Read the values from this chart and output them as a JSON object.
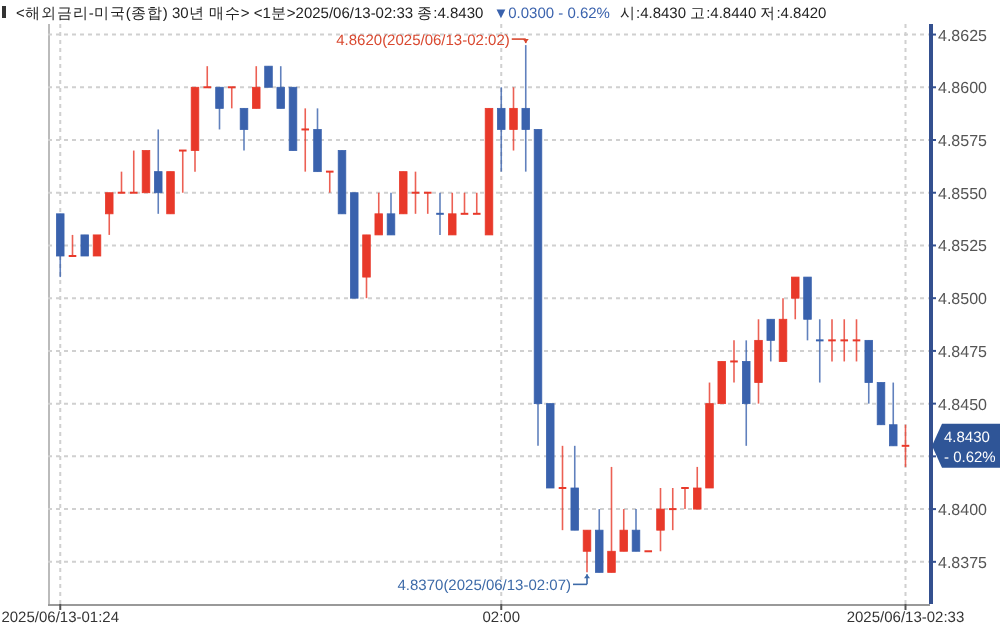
{
  "chart_data": {
    "type": "candlestick",
    "title": "<해외금리-미국(종합) 30년 매수> <1분>2025/06/13-02:33 종:4.8430",
    "subtitle": "▼0.0300  - 0.62%",
    "annotations": [
      "시:4.8430 고:4.8440 저:4.8420",
      {
        "text": "4.8620(2025/06/13-02:02)",
        "x": "2025-06-13T02:02",
        "y": 4.862
      },
      {
        "text": "4.8370(2025/06/13-02:07)",
        "x": "2025-06-13T02:07",
        "y": 4.837
      },
      "4.8430",
      "- 0.62%"
    ],
    "x": [
      "2025-06-13T01:24",
      "2025-06-13T01:25",
      "2025-06-13T01:26",
      "2025-06-13T01:27",
      "2025-06-13T01:28",
      "2025-06-13T01:29",
      "2025-06-13T01:30",
      "2025-06-13T01:31",
      "2025-06-13T01:32",
      "2025-06-13T01:33",
      "2025-06-13T01:34",
      "2025-06-13T01:35",
      "2025-06-13T01:36",
      "2025-06-13T01:37",
      "2025-06-13T01:38",
      "2025-06-13T01:39",
      "2025-06-13T01:40",
      "2025-06-13T01:41",
      "2025-06-13T01:42",
      "2025-06-13T01:43",
      "2025-06-13T01:44",
      "2025-06-13T01:45",
      "2025-06-13T01:46",
      "2025-06-13T01:47",
      "2025-06-13T01:48",
      "2025-06-13T01:49",
      "2025-06-13T01:50",
      "2025-06-13T01:51",
      "2025-06-13T01:52",
      "2025-06-13T01:53",
      "2025-06-13T01:54",
      "2025-06-13T01:55",
      "2025-06-13T01:56",
      "2025-06-13T01:57",
      "2025-06-13T01:58",
      "2025-06-13T01:59",
      "2025-06-13T02:00",
      "2025-06-13T02:01",
      "2025-06-13T02:02",
      "2025-06-13T02:03",
      "2025-06-13T02:04",
      "2025-06-13T02:05",
      "2025-06-13T02:06",
      "2025-06-13T02:07",
      "2025-06-13T02:08",
      "2025-06-13T02:09",
      "2025-06-13T02:10",
      "2025-06-13T02:11",
      "2025-06-13T02:12",
      "2025-06-13T02:13",
      "2025-06-13T02:14",
      "2025-06-13T02:15",
      "2025-06-13T02:16",
      "2025-06-13T02:17",
      "2025-06-13T02:18",
      "2025-06-13T02:19",
      "2025-06-13T02:20",
      "2025-06-13T02:21",
      "2025-06-13T02:22",
      "2025-06-13T02:23",
      "2025-06-13T02:24",
      "2025-06-13T02:25",
      "2025-06-13T02:26",
      "2025-06-13T02:27",
      "2025-06-13T02:28",
      "2025-06-13T02:29",
      "2025-06-13T02:30",
      "2025-06-13T02:31",
      "2025-06-13T02:32",
      "2025-06-13T02:33"
    ],
    "ohlc": [
      [
        4.854,
        4.854,
        4.851,
        4.852
      ],
      [
        4.852,
        4.853,
        4.852,
        4.852
      ],
      [
        4.853,
        4.853,
        4.852,
        4.852
      ],
      [
        4.852,
        4.853,
        4.852,
        4.853
      ],
      [
        4.854,
        4.855,
        4.853,
        4.855
      ],
      [
        4.855,
        4.856,
        4.855,
        4.855
      ],
      [
        4.855,
        4.857,
        4.855,
        4.855
      ],
      [
        4.855,
        4.857,
        4.855,
        4.857
      ],
      [
        4.856,
        4.858,
        4.854,
        4.855
      ],
      [
        4.854,
        4.856,
        4.854,
        4.856
      ],
      [
        4.857,
        4.857,
        4.855,
        4.857
      ],
      [
        4.857,
        4.86,
        4.856,
        4.86
      ],
      [
        4.86,
        4.861,
        4.86,
        4.86
      ],
      [
        4.86,
        4.86,
        4.858,
        4.859
      ],
      [
        4.86,
        4.86,
        4.859,
        4.86
      ],
      [
        4.859,
        4.859,
        4.857,
        4.858
      ],
      [
        4.859,
        4.861,
        4.859,
        4.86
      ],
      [
        4.861,
        4.861,
        4.86,
        4.86
      ],
      [
        4.86,
        4.861,
        4.859,
        4.859
      ],
      [
        4.86,
        4.86,
        4.857,
        4.857
      ],
      [
        4.858,
        4.859,
        4.856,
        4.858
      ],
      [
        4.858,
        4.859,
        4.856,
        4.856
      ],
      [
        4.856,
        4.856,
        4.855,
        4.856
      ],
      [
        4.857,
        4.857,
        4.854,
        4.854
      ],
      [
        4.855,
        4.855,
        4.85,
        4.85
      ],
      [
        4.851,
        4.853,
        4.85,
        4.853
      ],
      [
        4.853,
        4.855,
        4.853,
        4.854
      ],
      [
        4.854,
        4.855,
        4.853,
        4.853
      ],
      [
        4.854,
        4.856,
        4.854,
        4.856
      ],
      [
        4.855,
        4.856,
        4.854,
        4.855
      ],
      [
        4.855,
        4.855,
        4.854,
        4.855
      ],
      [
        4.854,
        4.855,
        4.853,
        4.854
      ],
      [
        4.853,
        4.855,
        4.853,
        4.854
      ],
      [
        4.854,
        4.855,
        4.854,
        4.854
      ],
      [
        4.854,
        4.855,
        4.854,
        4.854
      ],
      [
        4.853,
        4.859,
        4.853,
        4.859
      ],
      [
        4.859,
        4.86,
        4.856,
        4.858
      ],
      [
        4.858,
        4.86,
        4.857,
        4.859
      ],
      [
        4.859,
        4.862,
        4.856,
        4.858
      ],
      [
        4.858,
        4.858,
        4.843,
        4.845
      ],
      [
        4.845,
        4.845,
        4.841,
        4.841
      ],
      [
        4.841,
        4.843,
        4.839,
        4.841
      ],
      [
        4.841,
        4.843,
        4.839,
        4.839
      ],
      [
        4.838,
        4.839,
        4.837,
        4.839
      ],
      [
        4.839,
        4.84,
        4.837,
        4.837
      ],
      [
        4.837,
        4.842,
        4.837,
        4.838
      ],
      [
        4.838,
        4.84,
        4.838,
        4.839
      ],
      [
        4.839,
        4.84,
        4.838,
        4.838
      ],
      [
        4.838,
        4.838,
        4.838,
        4.838
      ],
      [
        4.839,
        4.841,
        4.838,
        4.84
      ],
      [
        4.84,
        4.841,
        4.839,
        4.84
      ],
      [
        4.841,
        4.841,
        4.84,
        4.841
      ],
      [
        4.84,
        4.842,
        4.84,
        4.841
      ],
      [
        4.841,
        4.846,
        4.841,
        4.845
      ],
      [
        4.845,
        4.847,
        4.845,
        4.847
      ],
      [
        4.847,
        4.848,
        4.846,
        4.847
      ],
      [
        4.847,
        4.848,
        4.843,
        4.845
      ],
      [
        4.846,
        4.849,
        4.845,
        4.848
      ],
      [
        4.849,
        4.849,
        4.847,
        4.848
      ],
      [
        4.847,
        4.85,
        4.847,
        4.849
      ],
      [
        4.85,
        4.851,
        4.849,
        4.851
      ],
      [
        4.851,
        4.851,
        4.848,
        4.849
      ],
      [
        4.848,
        4.849,
        4.846,
        4.848
      ],
      [
        4.848,
        4.849,
        4.847,
        4.848
      ],
      [
        4.848,
        4.849,
        4.847,
        4.848
      ],
      [
        4.848,
        4.849,
        4.847,
        4.848
      ],
      [
        4.848,
        4.848,
        4.845,
        4.846
      ],
      [
        4.846,
        4.846,
        4.844,
        4.844
      ],
      [
        4.844,
        4.846,
        4.843,
        4.843
      ],
      [
        4.843,
        4.844,
        4.842,
        4.843
      ]
    ],
    "colors": [
      "#3a62ad",
      "#e8392a",
      "#3a62ad",
      "#e8392a",
      "#e8392a",
      "#e8392a",
      "#e8392a",
      "#e8392a",
      "#3a62ad",
      "#e8392a",
      "#e8392a",
      "#e8392a",
      "#e8392a",
      "#3a62ad",
      "#e8392a",
      "#3a62ad",
      "#e8392a",
      "#3a62ad",
      "#3a62ad",
      "#3a62ad",
      "#e8392a",
      "#3a62ad",
      "#e8392a",
      "#3a62ad",
      "#3a62ad",
      "#e8392a",
      "#e8392a",
      "#3a62ad",
      "#e8392a",
      "#e8392a",
      "#e8392a",
      "#3a62ad",
      "#e8392a",
      "#e8392a",
      "#e8392a",
      "#e8392a",
      "#3a62ad",
      "#e8392a",
      "#3a62ad",
      "#3a62ad",
      "#3a62ad",
      "#e8392a",
      "#3a62ad",
      "#e8392a",
      "#3a62ad",
      "#e8392a",
      "#e8392a",
      "#3a62ad",
      "#e8392a",
      "#e8392a",
      "#e8392a",
      "#e8392a",
      "#e8392a",
      "#e8392a",
      "#e8392a",
      "#e8392a",
      "#3a62ad",
      "#e8392a",
      "#3a62ad",
      "#e8392a",
      "#e8392a",
      "#3a62ad",
      "#3a62ad",
      "#e8392a",
      "#e8392a",
      "#e8392a",
      "#3a62ad",
      "#3a62ad",
      "#3a62ad",
      "#e8392a"
    ],
    "xlim": [
      "2025-06-13T01:23",
      "2025-06-13T02:35"
    ],
    "xticks": [
      {
        "value": "2025-06-13T01:24",
        "label": "2025/06/13-01:24"
      },
      {
        "value": "2025-06-13T02:00",
        "label": "02:00"
      },
      {
        "value": "2025-06-13T02:33",
        "label": "2025/06/13-02:33"
      }
    ],
    "ylim": [
      4.8355,
      4.863
    ],
    "yticks": [
      {
        "value": 4.8375,
        "label": "4.8375"
      },
      {
        "value": 4.84,
        "label": "4.8400"
      },
      {
        "value": 4.8425,
        "label": null
      },
      {
        "value": 4.845,
        "label": "4.8450"
      },
      {
        "value": 4.8475,
        "label": "4.8475"
      },
      {
        "value": 4.85,
        "label": "4.8500"
      },
      {
        "value": 4.8525,
        "label": "4.8525"
      },
      {
        "value": 4.855,
        "label": "4.8550"
      },
      {
        "value": 4.8575,
        "label": "4.8575"
      },
      {
        "value": 4.86,
        "label": "4.8600"
      },
      {
        "value": 4.8625,
        "label": "4.8625"
      }
    ],
    "grid": true
  }
}
